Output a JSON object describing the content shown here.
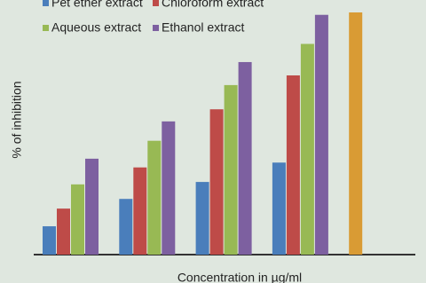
{
  "chart_data": {
    "type": "bar",
    "y_label": "% of inhibition",
    "x_label": "Concentration in µg/ml",
    "categories": [
      null,
      null,
      null,
      null,
      null
    ],
    "ylim": [
      0,
      100
    ],
    "series": [
      {
        "name": "Pet ether extract",
        "color": "#4a7ebb",
        "values": [
          11.7,
          23,
          30,
          38,
          null
        ]
      },
      {
        "name": "Chloroform extract",
        "color": "#be4b48",
        "values": [
          19,
          36,
          60,
          74,
          null
        ]
      },
      {
        "name": "Aqueous extract",
        "color": "#98b954",
        "values": [
          29,
          47,
          70,
          87,
          null
        ]
      },
      {
        "name": "Ethanol extract",
        "color": "#7d60a0",
        "values": [
          39.6,
          55,
          79.5,
          99,
          null
        ]
      },
      {
        "color": "#d99b34",
        "values": [
          null,
          null,
          null,
          null,
          100
        ]
      }
    ]
  }
}
